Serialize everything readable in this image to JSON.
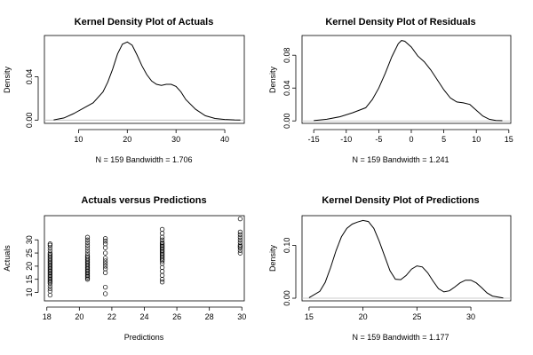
{
  "colors": {
    "line": "#000000",
    "baseline": "#bbbbbb",
    "background": "#ffffff"
  },
  "chart_data": [
    {
      "type": "line",
      "title": "Kernel Density Plot of Actuals",
      "xlabel": "N = 159   Bandwidth = 1.706",
      "ylabel": "Density",
      "xlim": [
        3.0,
        44.0
      ],
      "ylim": [
        -0.003,
        0.078
      ],
      "xticks": [
        10,
        20,
        30,
        40
      ],
      "yticks": [
        0.0,
        0.04
      ],
      "ytick_labels": [
        "0.00",
        "0.04"
      ],
      "zero_line": true,
      "series": [
        {
          "x": [
            4.9,
            7,
            9,
            11,
            13,
            15,
            16,
            17,
            18,
            19,
            20,
            21,
            22,
            23,
            24,
            25,
            26,
            27,
            28,
            29,
            30,
            31,
            32,
            34,
            36,
            38,
            40,
            42,
            43.2
          ],
          "y": [
            0.0002,
            0.002,
            0.006,
            0.011,
            0.016,
            0.026,
            0.035,
            0.047,
            0.061,
            0.07,
            0.072,
            0.069,
            0.06,
            0.05,
            0.042,
            0.036,
            0.033,
            0.032,
            0.033,
            0.033,
            0.031,
            0.026,
            0.019,
            0.01,
            0.004,
            0.0015,
            0.0006,
            0.0002,
            0.0001
          ]
        }
      ]
    },
    {
      "type": "line",
      "title": "Kernel Density Plot of Residuals",
      "xlabel": "N = 159   Bandwidth = 1.241",
      "ylabel": "Density",
      "xlim": [
        -16.8,
        15.3
      ],
      "ylim": [
        -0.003,
        0.104
      ],
      "xticks": [
        -15,
        -10,
        -5,
        0,
        5,
        10,
        15
      ],
      "yticks": [
        0.0,
        0.04,
        0.08
      ],
      "ytick_labels": [
        "0.00",
        "0.04",
        "0.08"
      ],
      "zero_line": true,
      "series": [
        {
          "x": [
            -15,
            -13,
            -11,
            -9,
            -7,
            -6,
            -5,
            -4,
            -3,
            -2,
            -1.5,
            -1,
            0,
            1,
            2,
            3,
            4,
            5,
            6,
            7,
            8,
            9,
            10,
            11,
            12,
            13,
            14
          ],
          "y": [
            0.0003,
            0.002,
            0.005,
            0.01,
            0.016,
            0.026,
            0.04,
            0.058,
            0.078,
            0.094,
            0.098,
            0.097,
            0.09,
            0.079,
            0.072,
            0.062,
            0.05,
            0.038,
            0.028,
            0.023,
            0.022,
            0.02,
            0.013,
            0.006,
            0.002,
            0.0006,
            0.0002
          ]
        }
      ]
    },
    {
      "type": "scatter",
      "title": "Actuals versus Predictions",
      "xlabel": "Predictions",
      "ylabel": "Actuals",
      "xlim": [
        17.85,
        30.15
      ],
      "ylim": [
        6.8,
        39.2
      ],
      "xticks": [
        18,
        20,
        22,
        24,
        26,
        28,
        30
      ],
      "yticks": [
        10,
        15,
        20,
        25,
        30
      ],
      "zero_line": false,
      "groups": [
        {
          "x": 18.2,
          "y": [
            9,
            10.5,
            11.5,
            12.5,
            13.5,
            14,
            14.5,
            15,
            15.5,
            16,
            16.5,
            17,
            17.5,
            18,
            18.5,
            19,
            19.5,
            20,
            20.5,
            21,
            21.5,
            22,
            22.5,
            23,
            23.5,
            24,
            24.5,
            25,
            26,
            27,
            28,
            28.5
          ]
        },
        {
          "x": 20.5,
          "y": [
            15,
            15.5,
            16,
            16.5,
            17,
            17.5,
            18,
            18.5,
            19,
            19.5,
            20,
            20.5,
            21,
            21.5,
            22,
            22.5,
            23,
            23.5,
            24,
            25,
            26,
            27,
            28,
            29,
            30,
            31
          ]
        },
        {
          "x": 21.6,
          "y": [
            9.5,
            12,
            17.5,
            19,
            20,
            21,
            22,
            23,
            25,
            27,
            28.5,
            29.5,
            30.5
          ]
        },
        {
          "x": 25.1,
          "y": [
            14,
            15,
            16.5,
            18,
            19.5,
            21,
            22,
            22.5,
            23,
            23.5,
            24,
            24.5,
            25,
            25.5,
            26,
            26.5,
            27,
            27.5,
            28,
            28.5,
            29,
            30,
            31,
            32.5,
            34
          ]
        },
        {
          "x": 29.9,
          "y": [
            25,
            26,
            27,
            27.5,
            28,
            29,
            30,
            31,
            32,
            33,
            38
          ]
        }
      ]
    },
    {
      "type": "line",
      "title": "Kernel Density Plot of Predictions",
      "xlabel": "N = 159   Bandwidth = 1.177",
      "ylabel": "Density",
      "xlim": [
        14.35,
        33.7
      ],
      "ylim": [
        -0.005,
        0.156
      ],
      "xticks": [
        15,
        20,
        25,
        30
      ],
      "yticks": [
        0.0,
        0.1
      ],
      "ytick_labels": [
        "0.00",
        "0.10"
      ],
      "zero_line": true,
      "series": [
        {
          "x": [
            15,
            16,
            16.5,
            17,
            17.5,
            18,
            18.5,
            19,
            19.5,
            20,
            20.5,
            21,
            21.5,
            22,
            22.5,
            23,
            23.5,
            24,
            24.5,
            25,
            25.5,
            26,
            26.5,
            27,
            27.5,
            28,
            28.5,
            29,
            29.5,
            30,
            30.5,
            31,
            31.5,
            32,
            33
          ],
          "y": [
            0.001,
            0.013,
            0.03,
            0.058,
            0.09,
            0.116,
            0.132,
            0.14,
            0.144,
            0.147,
            0.145,
            0.132,
            0.108,
            0.08,
            0.052,
            0.036,
            0.035,
            0.043,
            0.055,
            0.061,
            0.059,
            0.048,
            0.032,
            0.018,
            0.012,
            0.014,
            0.021,
            0.029,
            0.034,
            0.034,
            0.029,
            0.02,
            0.01,
            0.004,
            0.0005
          ]
        }
      ]
    }
  ]
}
